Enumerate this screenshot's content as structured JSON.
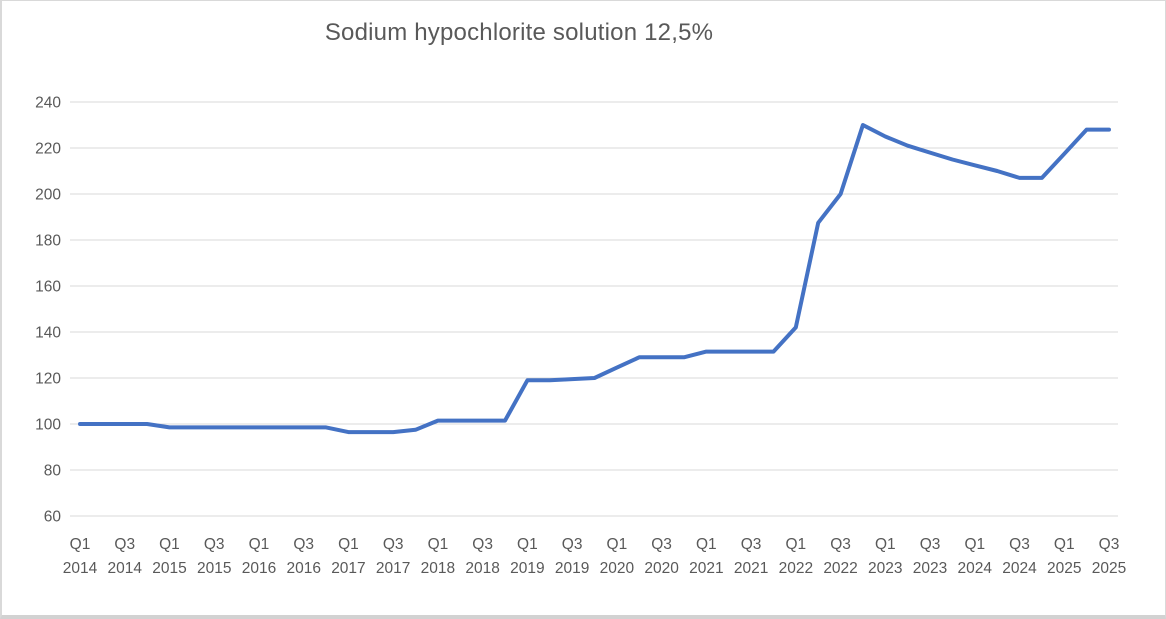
{
  "chart": {
    "title": "Sodium hypochlorite solution 12,5%"
  },
  "colors": {
    "line": "#4472C4",
    "grid": "#D9D9D9",
    "text": "#595959",
    "background": "#FFFFFF",
    "frame_border": "#D9D9D9"
  },
  "chart_data": {
    "type": "line",
    "title": "Sodium hypochlorite solution 12,5%",
    "legend": "none",
    "grid": "horizontal",
    "ylim": [
      60,
      240
    ],
    "yticks": [
      60,
      80,
      100,
      120,
      140,
      160,
      180,
      200,
      220,
      240
    ],
    "xtick_labels": [
      "Q1 2014",
      "Q3 2014",
      "Q1 2015",
      "Q3 2015",
      "Q1 2016",
      "Q3 2016",
      "Q1 2017",
      "Q3 2017",
      "Q1 2018",
      "Q3 2018",
      "Q1 2019",
      "Q3 2019",
      "Q1 2020",
      "Q3 2020",
      "Q1 2021",
      "Q3 2021",
      "Q1 2022",
      "Q3 2022",
      "Q1 2023",
      "Q3 2023",
      "Q1 2024",
      "Q3 2024",
      "Q1 2025",
      "Q3 2025"
    ],
    "x": [
      "Q1 2014",
      "Q2 2014",
      "Q3 2014",
      "Q4 2014",
      "Q1 2015",
      "Q2 2015",
      "Q3 2015",
      "Q4 2015",
      "Q1 2016",
      "Q2 2016",
      "Q3 2016",
      "Q4 2016",
      "Q1 2017",
      "Q2 2017",
      "Q3 2017",
      "Q4 2017",
      "Q1 2018",
      "Q2 2018",
      "Q3 2018",
      "Q4 2018",
      "Q1 2019",
      "Q2 2019",
      "Q3 2019",
      "Q4 2019",
      "Q1 2020",
      "Q2 2020",
      "Q3 2020",
      "Q4 2020",
      "Q1 2021",
      "Q2 2021",
      "Q3 2021",
      "Q4 2021",
      "Q1 2022",
      "Q2 2022",
      "Q3 2022",
      "Q4 2022",
      "Q1 2023",
      "Q2 2023",
      "Q3 2023",
      "Q4 2023",
      "Q1 2024",
      "Q2 2024",
      "Q3 2024",
      "Q4 2024",
      "Q1 2025",
      "Q2 2025",
      "Q3 2025"
    ],
    "series": [
      {
        "name": "Sodium hypochlorite solution 12,5%",
        "values": [
          100,
          100,
          100,
          100,
          98.5,
          98.5,
          98.5,
          98.5,
          98.5,
          98.5,
          98.5,
          98.5,
          96.5,
          96.5,
          96.5,
          97.5,
          101.5,
          101.5,
          101.5,
          101.5,
          119,
          119,
          119.5,
          120,
          124.5,
          129,
          129,
          129,
          131.5,
          131.5,
          131.5,
          131.5,
          142,
          187.5,
          200,
          230,
          225,
          221,
          218,
          215,
          212.5,
          210,
          207,
          207,
          217.5,
          228,
          228
        ]
      }
    ]
  }
}
